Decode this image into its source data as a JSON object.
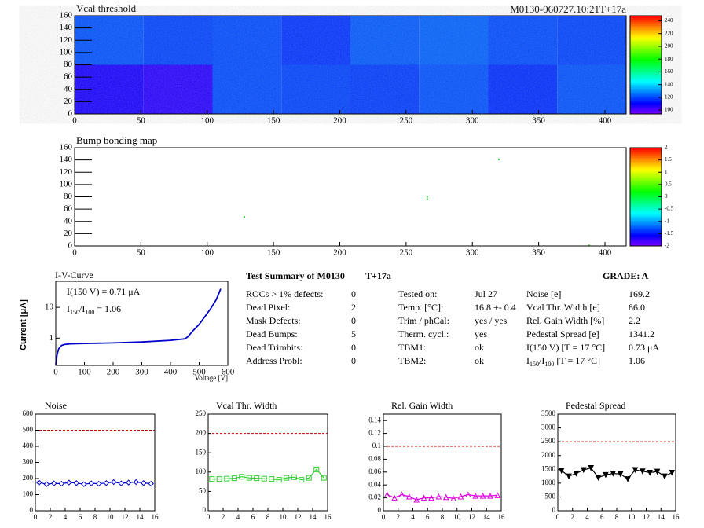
{
  "header": {
    "id": "M0130-060727.10:21T+17a"
  },
  "chart_data": [
    {
      "type": "heatmap",
      "title": "Vcal threshold",
      "xlim": [
        0,
        416
      ],
      "ylim": [
        0,
        160
      ],
      "xticks": [
        0,
        50,
        100,
        150,
        200,
        250,
        300,
        350,
        400
      ],
      "yticks": [
        0,
        20,
        40,
        60,
        80,
        100,
        120,
        140,
        160
      ],
      "values": [
        [
          108,
          106,
          121,
          120,
          119,
          122,
          117,
          122
        ],
        [
          122,
          120,
          121,
          118,
          123,
          124,
          121,
          120
        ]
      ],
      "zlim": [
        94,
        248
      ],
      "zticks": [
        100,
        120,
        140,
        160,
        180,
        200,
        220,
        240
      ]
    },
    {
      "type": "scatter",
      "title": "Bump bonding map",
      "xlim": [
        0,
        416
      ],
      "ylim": [
        0,
        160
      ],
      "xticks": [
        0,
        50,
        100,
        150,
        200,
        250,
        300,
        350,
        400
      ],
      "yticks": [
        0,
        20,
        40,
        60,
        80,
        100,
        120,
        140,
        160
      ],
      "x": [
        128,
        266,
        266,
        320,
        388
      ],
      "values": [
        47,
        80,
        76,
        141,
        1
      ],
      "color": "#33cc33",
      "zlim": [
        -2,
        2
      ],
      "zticks": [
        -2,
        -1.5,
        -1,
        -0.5,
        0,
        0.5,
        1,
        1.5,
        2
      ]
    },
    {
      "type": "line",
      "title": "I-V-Curve",
      "log_y": true,
      "xlabel": "Voltage [V]",
      "ylabel": "Current [μA]",
      "xlim": [
        0,
        600
      ],
      "ylim": [
        0.13,
        70
      ],
      "xticks": [
        0,
        100,
        200,
        300,
        400,
        500,
        600
      ],
      "yticks": [
        1,
        10
      ],
      "x": [
        0,
        5,
        10,
        20,
        30,
        50,
        100,
        200,
        300,
        400,
        450,
        460,
        480,
        500,
        520,
        540,
        560,
        570,
        575
      ],
      "values": [
        0.14,
        0.3,
        0.45,
        0.58,
        0.62,
        0.65,
        0.67,
        0.7,
        0.75,
        0.85,
        0.95,
        1.1,
        1.8,
        2.8,
        5,
        9,
        18,
        30,
        40
      ],
      "color": "#0000cc",
      "annotation": "I(150 V) = 0.71 μA",
      "ratio_label": [
        "I",
        "150",
        "/I",
        "100",
        " =  1.06"
      ]
    },
    {
      "type": "line",
      "title": "Noise",
      "xlim": [
        0,
        16
      ],
      "ylim": [
        0,
        600
      ],
      "xticks": [
        0,
        2,
        4,
        6,
        8,
        10,
        12,
        14,
        16
      ],
      "yticks": [
        0,
        100,
        200,
        300,
        400,
        500,
        600
      ],
      "threshold": 500,
      "color": "#0000cc",
      "marker": "diamond",
      "x": [
        0.5,
        1.5,
        2.5,
        3.5,
        4.5,
        5.5,
        6.5,
        7.5,
        8.5,
        9.5,
        10.5,
        11.5,
        12.5,
        13.5,
        14.5,
        15.5
      ],
      "values": [
        175,
        165,
        170,
        168,
        175,
        172,
        165,
        170,
        168,
        172,
        178,
        170,
        175,
        178,
        172,
        168
      ]
    },
    {
      "type": "line",
      "title": "Vcal Thr. Width",
      "xlim": [
        0,
        16
      ],
      "ylim": [
        0,
        250
      ],
      "xticks": [
        0,
        2,
        4,
        6,
        8,
        10,
        12,
        14,
        16
      ],
      "yticks": [
        0,
        50,
        100,
        150,
        200,
        250
      ],
      "threshold": 200,
      "color": "#33cc33",
      "marker": "square",
      "x": [
        0.5,
        1.5,
        2.5,
        3.5,
        4.5,
        5.5,
        6.5,
        7.5,
        8.5,
        9.5,
        10.5,
        11.5,
        12.5,
        13.5,
        14.5,
        15.5
      ],
      "values": [
        82,
        82,
        83,
        84,
        88,
        85,
        84,
        83,
        82,
        80,
        85,
        87,
        80,
        85,
        107,
        85
      ]
    },
    {
      "type": "line",
      "title": "Rel. Gain Width",
      "xlim": [
        0,
        16
      ],
      "ylim": [
        0,
        0.15
      ],
      "xticks": [
        0,
        2,
        4,
        6,
        8,
        10,
        12,
        14,
        16
      ],
      "yticks": [
        0,
        0.02,
        0.04,
        0.06,
        0.08,
        0.1,
        0.12,
        0.14
      ],
      "threshold": 0.1,
      "color": "#dd00dd",
      "marker": "triangle",
      "x": [
        0.5,
        1.5,
        2.5,
        3.5,
        4.5,
        5.5,
        6.5,
        7.5,
        8.5,
        9.5,
        10.5,
        11.5,
        12.5,
        13.5,
        14.5,
        15.5
      ],
      "values": [
        0.025,
        0.02,
        0.025,
        0.022,
        0.017,
        0.02,
        0.02,
        0.022,
        0.021,
        0.019,
        0.022,
        0.025,
        0.023,
        0.023,
        0.023,
        0.024
      ]
    },
    {
      "type": "line",
      "title": "Pedestal Spread",
      "xlim": [
        0,
        16
      ],
      "ylim": [
        0,
        3500
      ],
      "xticks": [
        0,
        2,
        4,
        6,
        8,
        10,
        12,
        14,
        16
      ],
      "yticks": [
        0,
        500,
        1000,
        1500,
        2000,
        2500,
        3000,
        3500
      ],
      "threshold": 2500,
      "color": "#000000",
      "marker": "triangle-down",
      "x": [
        0.5,
        1.5,
        2.5,
        3.5,
        4.5,
        5.5,
        6.5,
        7.5,
        8.5,
        9.5,
        10.5,
        11.5,
        12.5,
        13.5,
        14.5,
        15.5
      ],
      "values": [
        1450,
        1250,
        1350,
        1480,
        1550,
        1200,
        1300,
        1350,
        1330,
        1150,
        1480,
        1430,
        1380,
        1420,
        1250,
        1380
      ]
    }
  ],
  "summary": {
    "title": "Test Summary of M0130",
    "tag": "T+17a",
    "grade": "GRADE:  A",
    "columns": [
      {
        "rows": [
          {
            "label": "ROCs > 1% defects:",
            "value": "0"
          },
          {
            "label": "Dead Pixel:",
            "value": "2"
          },
          {
            "label": "Mask Defects:",
            "value": "0"
          },
          {
            "label": "Dead Bumps:",
            "value": "5"
          },
          {
            "label": "Dead Trimbits:",
            "value": "0"
          },
          {
            "label": "Address Probl:",
            "value": "0"
          }
        ]
      },
      {
        "rows": [
          {
            "label": "Tested on:",
            "value": "Jul 27"
          },
          {
            "label": "Temp. [°C]:",
            "value": "16.8 +- 0.4"
          },
          {
            "label": "Trim / phCal:",
            "value": "yes / yes"
          },
          {
            "label": "Therm. cycl.:",
            "value": "yes"
          },
          {
            "label": "TBM1:",
            "value": "ok"
          },
          {
            "label": "TBM2:",
            "value": "ok"
          }
        ]
      },
      {
        "rows": [
          {
            "label": "Noise [e]",
            "value": "169.2"
          },
          {
            "label": "Vcal Thr. Width [e]",
            "value": "86.0"
          },
          {
            "label": "Rel. Gain Width [%]",
            "value": "2.2"
          },
          {
            "label": "Pedestal Spread [e]",
            "value": "1341.2"
          },
          {
            "label": "I(150 V) [T = 17 °C]",
            "value": "0.73 μA"
          },
          {
            "label": [
              "I",
              "150",
              "/I",
              "100",
              "  [T = 17 °C]"
            ],
            "value": "1.06"
          }
        ]
      }
    ]
  }
}
